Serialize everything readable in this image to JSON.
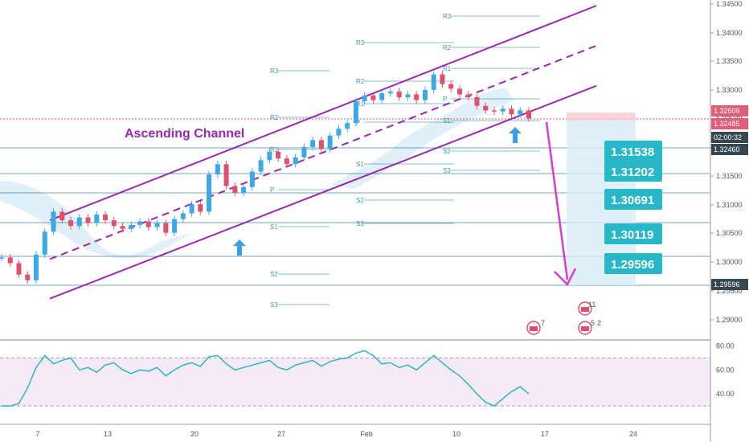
{
  "colors": {
    "channel": "#9c27b0",
    "candle_up": "#3ca8e8",
    "candle_down": "#e0506e",
    "level_line": "#2f7fb4",
    "level_box": "#26b8c8",
    "pivot": "#3a98a8",
    "arrow_up": "#3d9ee8",
    "arrow_down": "#d93bd1",
    "rsi_line": "#26b8c8",
    "rsi_band": "#f6eaf7",
    "cloud": "#d9ecf6",
    "price_badge_red": "#e35d7a",
    "price_badge_dark": "#37474f"
  },
  "chart_data": {
    "type": "candlestick",
    "annotation": "Ascending Channel",
    "x_ticks": [
      "7",
      "13",
      "20",
      "27",
      "Feb",
      "10",
      "17",
      "24"
    ],
    "y_ticks": [
      "1.34500",
      "1.34000",
      "1.33500",
      "1.33000",
      "1.32500",
      "1.32000",
      "1.31500",
      "1.31000",
      "1.30500",
      "1.30000",
      "1.29500",
      "1.29000"
    ],
    "ylim": [
      1.2865,
      1.3455
    ],
    "current_price": "1.32485",
    "price_labels": [
      "1.32609",
      "1.32485",
      "02:00:32",
      "1.32460",
      "1.29596"
    ],
    "levels": [
      "1.31538",
      "1.31202",
      "1.30691",
      "1.30119",
      "1.29596"
    ],
    "pivot_labels": [
      "R3",
      "R2",
      "R1",
      "P",
      "S1",
      "S2",
      "S3"
    ],
    "channel": {
      "upper": [
        [
          0.0,
          1.307
        ],
        [
          1.0,
          1.3445
        ]
      ],
      "middle": [
        [
          0.0,
          1.3002
        ],
        [
          1.0,
          1.3375
        ]
      ],
      "lower": [
        [
          0.0,
          1.2933
        ],
        [
          1.0,
          1.3305
        ]
      ]
    },
    "price_path": [
      1.3005,
      1.2995,
      1.2975,
      1.2965,
      1.301,
      1.305,
      1.3085,
      1.307,
      1.306,
      1.3075,
      1.3065,
      1.308,
      1.307,
      1.306,
      1.3055,
      1.3062,
      1.3068,
      1.3058,
      1.3065,
      1.3048,
      1.3072,
      1.3082,
      1.3098,
      1.3085,
      1.315,
      1.3168,
      1.313,
      1.3118,
      1.3128,
      1.3155,
      1.3175,
      1.319,
      1.3178,
      1.3168,
      1.318,
      1.3198,
      1.321,
      1.3195,
      1.3218,
      1.323,
      1.324,
      1.3278,
      1.3288,
      1.328,
      1.3292,
      1.3295,
      1.3285,
      1.329,
      1.328,
      1.3298,
      1.3325,
      1.3308,
      1.33,
      1.329,
      1.3285,
      1.327,
      1.3262,
      1.326,
      1.3265,
      1.3255,
      1.3262,
      1.3248
    ],
    "projection": {
      "from": 1.3248,
      "to": 1.296
    },
    "rsi": {
      "ylim": [
        20,
        85
      ],
      "y_ticks": [
        "80.00",
        "60.00",
        "40.00"
      ],
      "band": [
        30,
        70
      ],
      "values": [
        30,
        30,
        32,
        45,
        62,
        72,
        65,
        68,
        70,
        60,
        62,
        58,
        64,
        66,
        60,
        57,
        60,
        59,
        62,
        55,
        60,
        64,
        66,
        63,
        71,
        72,
        65,
        60,
        62,
        64,
        66,
        68,
        62,
        60,
        64,
        66,
        68,
        63,
        67,
        69,
        70,
        74,
        76,
        72,
        65,
        66,
        62,
        64,
        60,
        66,
        72,
        66,
        60,
        55,
        48,
        40,
        33,
        30,
        36,
        42,
        46,
        40
      ]
    }
  },
  "events": {
    "flag_counts": [
      "7",
      "11",
      "5",
      "2"
    ]
  }
}
